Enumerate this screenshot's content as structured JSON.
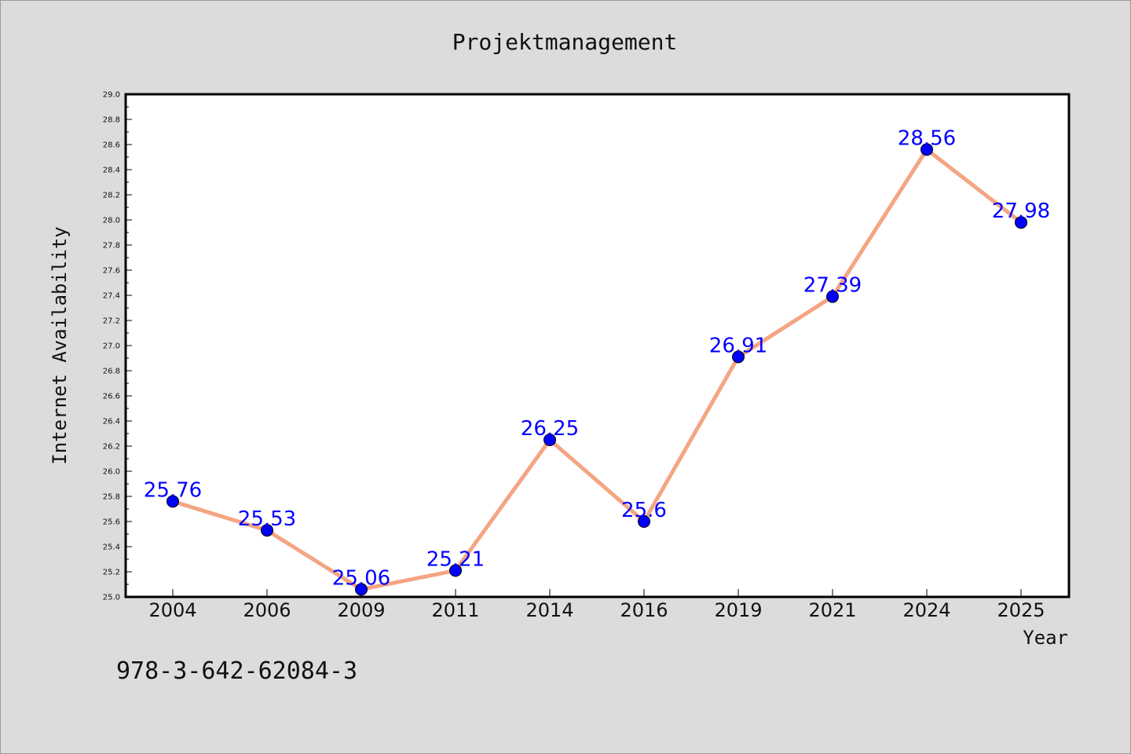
{
  "chart_data": {
    "type": "line",
    "title": "Projektmanagement",
    "xlabel": "Year",
    "ylabel": "Internet Availability",
    "categories": [
      "2004",
      "2006",
      "2009",
      "2011",
      "2014",
      "2016",
      "2019",
      "2021",
      "2024",
      "2025"
    ],
    "series": [
      {
        "values": [
          25.76,
          25.53,
          25.06,
          25.21,
          26.25,
          25.6,
          26.91,
          27.39,
          28.56,
          27.98
        ],
        "labels": [
          "25.76",
          "25.53",
          "25.06",
          "25.21",
          "26.25",
          "25.6",
          "26.91",
          "27.39",
          "28.56",
          "27.98"
        ],
        "line_color": "#f4a582",
        "marker_color": "#0000ff"
      }
    ],
    "ylim": [
      25.0,
      29.0
    ],
    "yticks": [
      "25.0",
      "25.2",
      "25.4",
      "25.6",
      "25.8",
      "26.0",
      "26.2",
      "26.4",
      "26.6",
      "26.8",
      "27.0",
      "27.2",
      "27.4",
      "27.6",
      "27.8",
      "28.0",
      "28.2",
      "28.4",
      "28.6",
      "28.8",
      "29.0"
    ],
    "grid": false,
    "legend": false
  },
  "footer": {
    "isbn": "978-3-642-62084-3"
  }
}
